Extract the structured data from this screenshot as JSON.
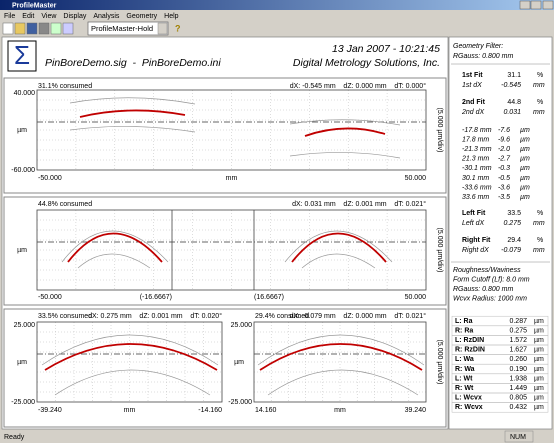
{
  "window": {
    "title": "ProfileMaster",
    "menu": [
      "File",
      "Edit",
      "View",
      "Display",
      "Analysis",
      "Geometry",
      "Help"
    ],
    "toolbar_combo": "ProfileMaster-Hold"
  },
  "header": {
    "datetime": "13 Jan 2007 - 10:21:45",
    "files": "PinBoreDemo.sig  -  PinBoreDemo.ini",
    "company": "Digital Metrology Solutions, Inc."
  },
  "plots": [
    {
      "consumed": "31.1% consumed",
      "offsets": "dX: -0.545 mm    dZ: 0.000 mm    dT: 0.000°",
      "y_top": "40.000",
      "y_unit": "µm",
      "y_bottom": "-60.000",
      "x_left": "-50.000",
      "x_unit": "mm",
      "x_right": "50.000",
      "scale": "(5.000 µm/div)"
    },
    {
      "consumed": "44.8% consumed",
      "offsets": "dX: 0.031 mm    dZ: 0.001 mm    dT: 0.021°",
      "y_unit": "µm",
      "x_left": "-50.000",
      "x_mid_left": "(-16.6667)",
      "x_mid_right": "(16.6667)",
      "x_right": "50.000",
      "scale": "(5.000 µm/div)"
    },
    {
      "consumed": "33.5% consumed",
      "offsets": "dX: 0.275 mm    dZ: 0.001 mm    dT: 0.020°",
      "y_top": "25.000",
      "y_unit": "µm",
      "y_bottom": "-25.000",
      "x_left": "-39.240",
      "x_unit": "mm",
      "x_right": "-14.160"
    },
    {
      "consumed": "29.4% consumed",
      "offsets": "dX: -0.079 mm    dZ: 0.000 mm    dT: 0.021°",
      "y_top": "25.000",
      "y_unit": "µm",
      "y_bottom": "-25.000",
      "x_left": "14.160",
      "x_unit": "mm",
      "x_right": "39.240",
      "scale": "(5.000 µm/div)"
    }
  ],
  "panel": {
    "filter_title": "Geometry Filter:",
    "filter_value": "RGauss: 0.800 mm",
    "fits": [
      {
        "label": "1st Fit",
        "value": "31.1",
        "unit": "%",
        "dx_label": "1st dX",
        "dx_value": "-0.545",
        "dx_unit": "mm"
      },
      {
        "label": "2nd Fit",
        "value": "44.8",
        "unit": "%",
        "dx_label": "2nd dX",
        "dx_value": "0.031",
        "dx_unit": "mm"
      }
    ],
    "dims": [
      [
        "-17.8 mm",
        "-7.6",
        "µm"
      ],
      [
        "17.8 mm",
        "-9.6",
        "µm"
      ],
      [
        "-21.3 mm",
        "-2.0",
        "µm"
      ],
      [
        "21.3 mm",
        "-2.7",
        "µm"
      ],
      [
        "-30.1 mm",
        "-0.3",
        "µm"
      ],
      [
        "30.1 mm",
        "-0.5",
        "µm"
      ],
      [
        "-33.6 mm",
        "-3.6",
        "µm"
      ],
      [
        "33.6 mm",
        "-3.5",
        "µm"
      ]
    ],
    "side_fits": [
      {
        "label": "Left Fit",
        "value": "33.5",
        "unit": "%",
        "dx_label": "Left dX",
        "dx_value": "0.275",
        "dx_unit": "mm"
      },
      {
        "label": "Right Fit",
        "value": "29.4",
        "unit": "%",
        "dx_label": "Right dX",
        "dx_value": "-0.079",
        "dx_unit": "mm"
      }
    ],
    "roughness": [
      "Roughness/Waviness",
      "Form Cutoff (Lf): 8.0 mm",
      "RGauss: 0.800 mm",
      "Wcvx Radius: 1000 mm"
    ],
    "params": [
      [
        "L: Ra",
        "0.287",
        "µm"
      ],
      [
        "R: Ra",
        "0.275",
        "µm"
      ],
      [
        "L: RzDIN",
        "1.572",
        "µm"
      ],
      [
        "R: RzDIN",
        "1.627",
        "µm"
      ],
      [
        "L: Wa",
        "0.260",
        "µm"
      ],
      [
        "R: Wa",
        "0.190",
        "µm"
      ],
      [
        "L: Wt",
        "1.938",
        "µm"
      ],
      [
        "R: Wt",
        "1.449",
        "µm"
      ],
      [
        "L: Wcvx",
        "0.805",
        "µm"
      ],
      [
        "R: Wcvx",
        "0.432",
        "µm"
      ]
    ]
  },
  "status": {
    "left": "Ready",
    "right": "NUM"
  }
}
